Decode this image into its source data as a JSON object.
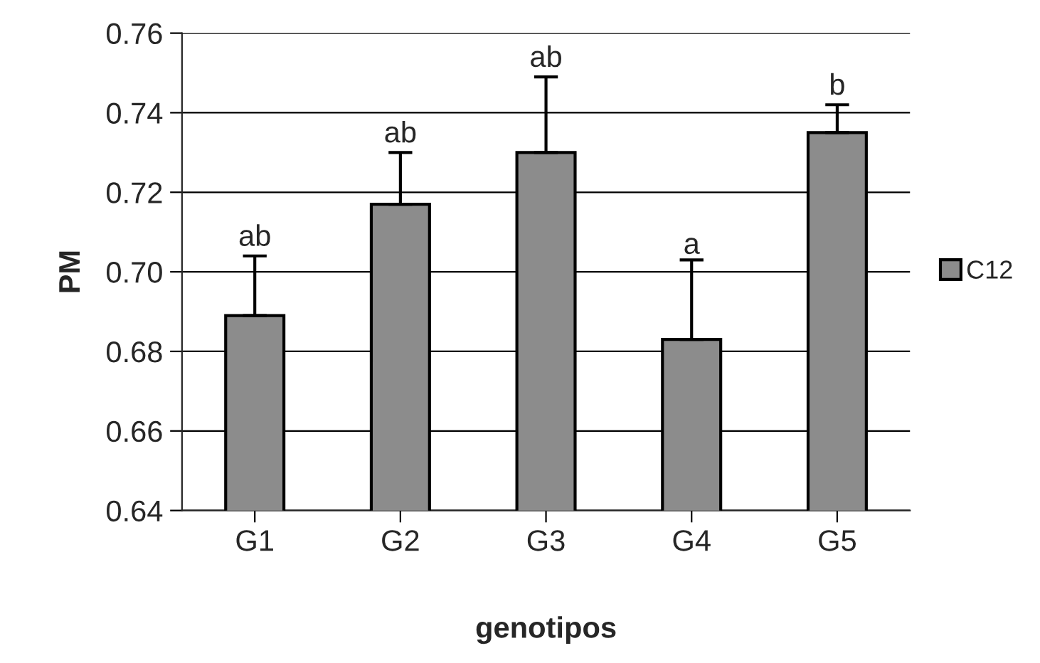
{
  "chart_data": {
    "type": "bar",
    "xlabel": "genotipos",
    "ylabel": "PM",
    "categories": [
      "G1",
      "G2",
      "G3",
      "G4",
      "G5"
    ],
    "series": [
      {
        "name": "C12",
        "color": "#8c8c8c",
        "values": [
          0.689,
          0.717,
          0.73,
          0.683,
          0.735
        ],
        "errors": [
          0.015,
          0.013,
          0.019,
          0.02,
          0.007
        ]
      }
    ],
    "ylim": [
      0.64,
      0.76
    ],
    "yticks": [
      {
        "value": 0.64,
        "label": "0.64"
      },
      {
        "value": 0.66,
        "label": "0.66"
      },
      {
        "value": 0.68,
        "label": "0.68"
      },
      {
        "value": 0.7,
        "label": "0.70"
      },
      {
        "value": 0.72,
        "label": "0.72"
      },
      {
        "value": 0.74,
        "label": "0.74"
      },
      {
        "value": 0.76,
        "label": "0.76"
      }
    ],
    "grid": "y",
    "legend": "right",
    "annotations": [
      {
        "text": "ab",
        "x": "G1",
        "y": 0.704
      },
      {
        "text": "ab",
        "x": "G2",
        "y": 0.73
      },
      {
        "text": "ab",
        "x": "G3",
        "y": 0.749
      },
      {
        "text": "a",
        "x": "G4",
        "y": 0.702
      },
      {
        "text": "b",
        "x": "G5",
        "y": 0.742
      }
    ]
  }
}
